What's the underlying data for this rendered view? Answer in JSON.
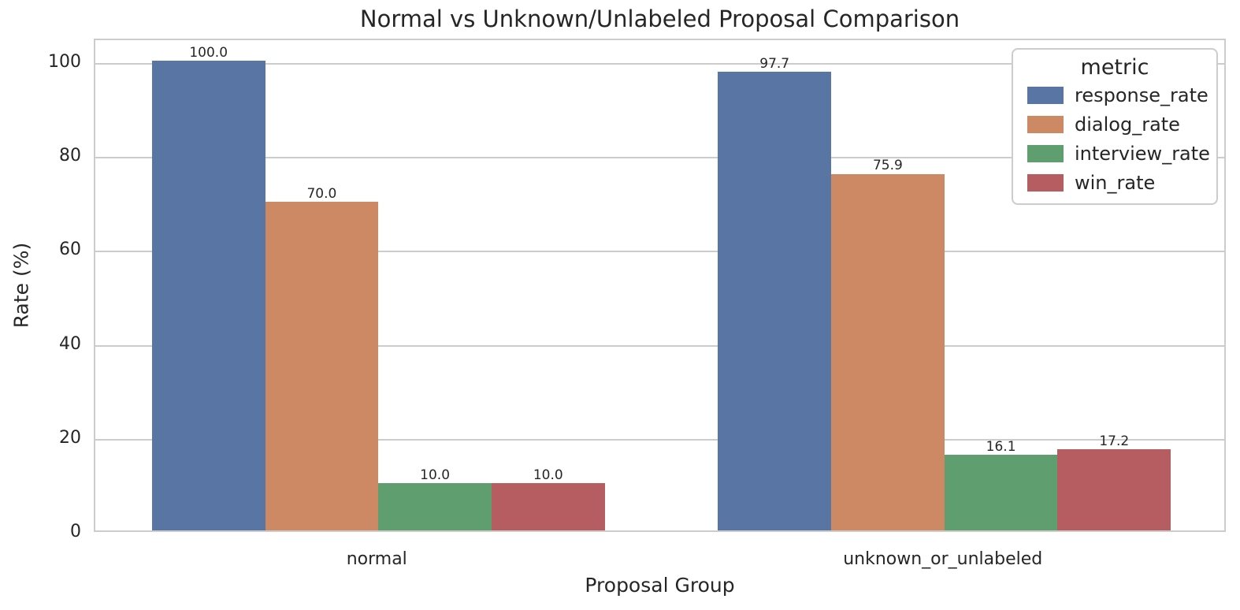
{
  "chart_data": {
    "type": "bar",
    "title": "Normal vs Unknown/Unlabeled Proposal Comparison",
    "xlabel": "Proposal Group",
    "ylabel": "Rate (%)",
    "categories": [
      "normal",
      "unknown_or_unlabeled"
    ],
    "series": [
      {
        "name": "response_rate",
        "color": "#5875A4",
        "values": [
          100.0,
          97.7
        ],
        "labels": [
          "100.0",
          "97.7"
        ]
      },
      {
        "name": "dialog_rate",
        "color": "#CC8963",
        "values": [
          70.0,
          75.9
        ],
        "labels": [
          "70.0",
          "75.9"
        ]
      },
      {
        "name": "interview_rate",
        "color": "#5F9E6E",
        "values": [
          10.0,
          16.1
        ],
        "labels": [
          "10.0",
          "16.1"
        ]
      },
      {
        "name": "win_rate",
        "color": "#B55D60",
        "values": [
          10.0,
          17.2
        ],
        "labels": [
          "10.0",
          "17.2"
        ]
      }
    ],
    "yticks": [
      0,
      20,
      40,
      60,
      80,
      100
    ],
    "ylim": [
      0,
      105
    ],
    "grid": true,
    "legend": {
      "title": "metric",
      "position": "upper right"
    }
  },
  "colors": {
    "grid": "#cccccc",
    "spine": "#cccccc",
    "text": "#262626",
    "background": "#ffffff"
  }
}
